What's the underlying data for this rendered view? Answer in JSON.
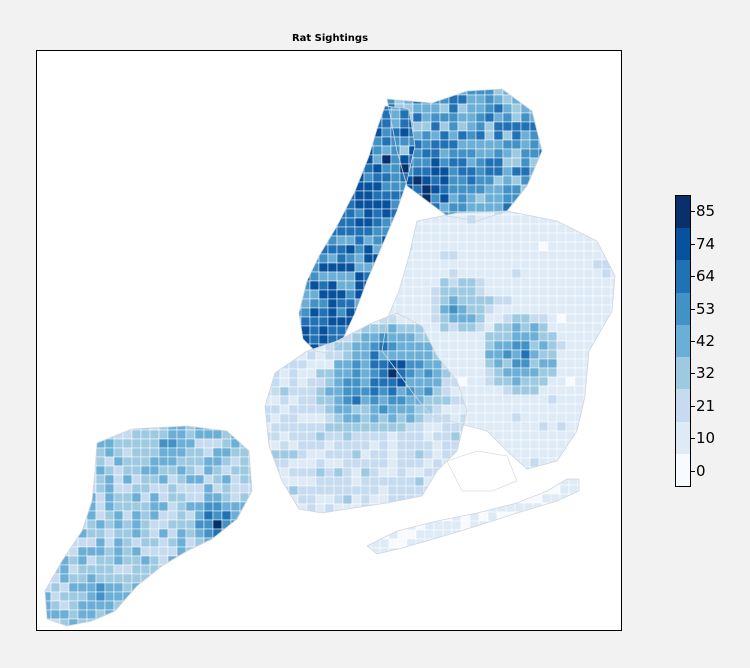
{
  "title": "Rat Sightings",
  "colorbar": {
    "ticks": [
      "85",
      "74",
      "64",
      "53",
      "42",
      "32",
      "21",
      "10",
      "0"
    ],
    "colors": [
      "#08306b",
      "#08519c",
      "#2171b5",
      "#4292c6",
      "#6baed6",
      "#9ecae1",
      "#c6dbef",
      "#deebf7",
      "#f7fbff"
    ]
  },
  "colors": {
    "background": "#f2f2f2",
    "map_background": "#ffffff",
    "tract_outline": "#ffffff",
    "coast_outline": "#cfd6de"
  }
}
